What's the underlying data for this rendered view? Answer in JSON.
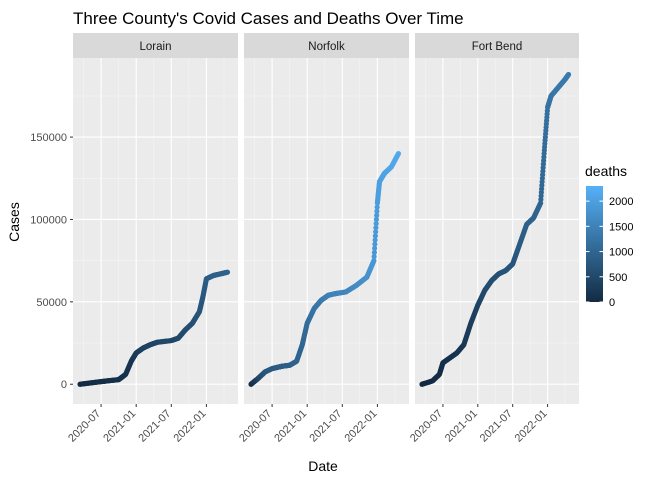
{
  "chart_data": {
    "type": "scatter",
    "title": "Three County's Covid Cases and Deaths Over Time",
    "xlabel": "Date",
    "ylabel": "Cases",
    "x_tick_labels": [
      "2020-07",
      "2021-01",
      "2021-07",
      "2022-01"
    ],
    "x_ticks_years": [
      2020.5,
      2021.0,
      2021.5,
      2022.0
    ],
    "xlim_years": [
      2020.1,
      2022.45
    ],
    "ylim": [
      -12000,
      198000
    ],
    "y_ticks": [
      0,
      50000,
      100000,
      150000
    ],
    "y_tick_labels": [
      "0",
      "50000",
      "100000",
      "150000"
    ],
    "grid": true,
    "legend": {
      "position": "right",
      "title": "deaths",
      "type": "colorbar",
      "range": [
        0,
        2300
      ],
      "ticks": [
        0,
        500,
        1000,
        1500,
        2000
      ],
      "tick_labels": [
        "0",
        "500",
        "1000",
        "1500",
        "2000"
      ],
      "low_color": "#132B43",
      "high_color": "#56B1F7"
    },
    "panels": [
      {
        "name": "Lorain",
        "points": [
          [
            2020.2,
            0,
            0
          ],
          [
            2020.35,
            800,
            30
          ],
          [
            2020.5,
            1600,
            60
          ],
          [
            2020.6,
            2100,
            80
          ],
          [
            2020.75,
            2800,
            100
          ],
          [
            2020.85,
            6000,
            120
          ],
          [
            2020.93,
            14000,
            180
          ],
          [
            2021.0,
            19000,
            280
          ],
          [
            2021.1,
            22000,
            380
          ],
          [
            2021.2,
            24000,
            420
          ],
          [
            2021.3,
            25500,
            450
          ],
          [
            2021.5,
            26500,
            480
          ],
          [
            2021.6,
            28000,
            500
          ],
          [
            2021.7,
            33000,
            560
          ],
          [
            2021.8,
            37000,
            620
          ],
          [
            2021.9,
            44000,
            700
          ],
          [
            2021.95,
            53000,
            780
          ],
          [
            2022.0,
            64000,
            850
          ],
          [
            2022.1,
            66000,
            900
          ],
          [
            2022.2,
            67000,
            920
          ],
          [
            2022.3,
            68000,
            940
          ]
        ]
      },
      {
        "name": "Norfolk",
        "points": [
          [
            2020.2,
            0,
            0
          ],
          [
            2020.3,
            3500,
            400
          ],
          [
            2020.4,
            7500,
            700
          ],
          [
            2020.5,
            9500,
            800
          ],
          [
            2020.6,
            10500,
            850
          ],
          [
            2020.65,
            11000,
            870
          ],
          [
            2020.75,
            11500,
            900
          ],
          [
            2020.85,
            14000,
            950
          ],
          [
            2020.93,
            24000,
            1000
          ],
          [
            2021.0,
            37000,
            1100
          ],
          [
            2021.1,
            46000,
            1250
          ],
          [
            2021.2,
            51000,
            1350
          ],
          [
            2021.3,
            54000,
            1450
          ],
          [
            2021.4,
            55000,
            1500
          ],
          [
            2021.55,
            56000,
            1550
          ],
          [
            2021.7,
            60000,
            1650
          ],
          [
            2021.85,
            65000,
            1750
          ],
          [
            2021.95,
            75000,
            1850
          ],
          [
            2022.0,
            110000,
            1950
          ],
          [
            2022.03,
            123000,
            2000
          ],
          [
            2022.1,
            128000,
            2050
          ],
          [
            2022.2,
            132000,
            2100
          ],
          [
            2022.3,
            140000,
            2150
          ]
        ]
      },
      {
        "name": "Fort Bend",
        "points": [
          [
            2020.2,
            0,
            0
          ],
          [
            2020.35,
            2000,
            10
          ],
          [
            2020.45,
            6000,
            30
          ],
          [
            2020.5,
            13000,
            80
          ],
          [
            2020.6,
            16000,
            120
          ],
          [
            2020.7,
            19000,
            160
          ],
          [
            2020.8,
            24000,
            220
          ],
          [
            2020.9,
            37000,
            320
          ],
          [
            2021.0,
            48000,
            420
          ],
          [
            2021.1,
            57000,
            520
          ],
          [
            2021.2,
            63000,
            600
          ],
          [
            2021.3,
            67000,
            650
          ],
          [
            2021.4,
            69000,
            680
          ],
          [
            2021.5,
            73000,
            720
          ],
          [
            2021.6,
            85000,
            800
          ],
          [
            2021.7,
            97000,
            900
          ],
          [
            2021.8,
            101000,
            950
          ],
          [
            2021.9,
            110000,
            1000
          ],
          [
            2021.95,
            140000,
            1100
          ],
          [
            2022.0,
            168000,
            1200
          ],
          [
            2022.05,
            175000,
            1250
          ],
          [
            2022.15,
            180000,
            1300
          ],
          [
            2022.25,
            185000,
            1330
          ],
          [
            2022.3,
            188000,
            1350
          ]
        ]
      }
    ]
  }
}
